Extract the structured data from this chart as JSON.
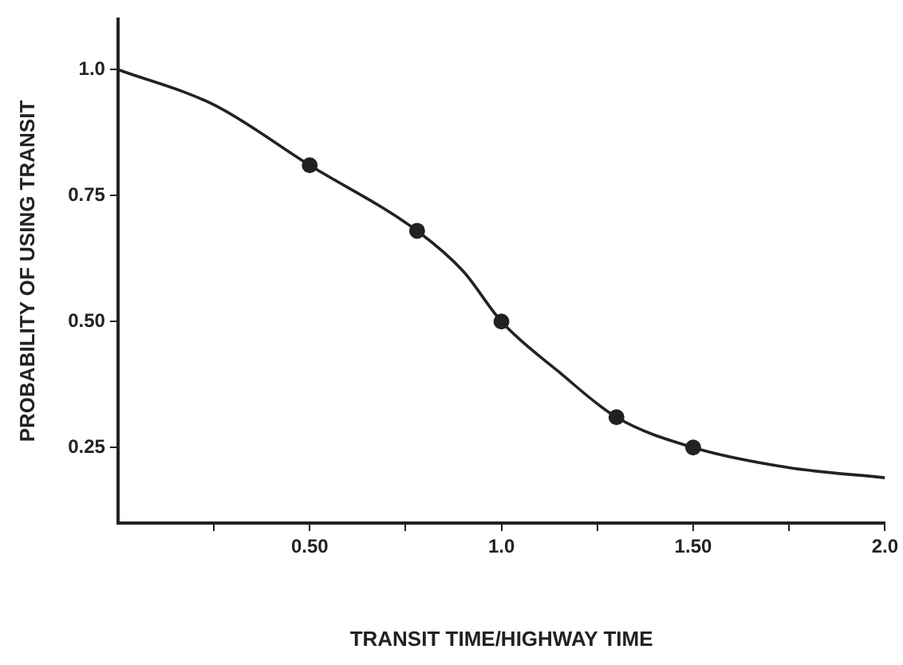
{
  "chart_data": {
    "type": "line",
    "xlabel": "TRANSIT TIME/HIGHWAY TIME",
    "ylabel": "PROBABILITY OF USING TRANSIT",
    "xlim": [
      0,
      2.0
    ],
    "ylim": [
      0.1,
      1.1
    ],
    "xticks": [
      {
        "value": 0.25,
        "label": null
      },
      {
        "value": 0.5,
        "label": "0.50"
      },
      {
        "value": 0.75,
        "label": null
      },
      {
        "value": 1.0,
        "label": "1.0"
      },
      {
        "value": 1.25,
        "label": null
      },
      {
        "value": 1.5,
        "label": "1.50"
      },
      {
        "value": 1.75,
        "label": null
      },
      {
        "value": 2.0,
        "label": "2.0"
      }
    ],
    "yticks": [
      {
        "value": 0.25,
        "label": "0.25"
      },
      {
        "value": 0.5,
        "label": "0.50"
      },
      {
        "value": 0.75,
        "label": "0.75"
      },
      {
        "value": 1.0,
        "label": "1.0"
      }
    ],
    "grid": false,
    "legend": false,
    "series": [
      {
        "color": "#222222",
        "marker": "none",
        "x": [
          0,
          0.25,
          0.5,
          0.78,
          0.9,
          1.0,
          1.15,
          1.3,
          1.5,
          1.75,
          2.0
        ],
        "values": [
          1.0,
          0.93,
          0.81,
          0.68,
          0.6,
          0.5,
          0.4,
          0.31,
          0.25,
          0.21,
          0.19
        ]
      },
      {
        "type": "scatter",
        "color": "#222222",
        "marker": "circle",
        "x": [
          0.5,
          0.78,
          1.0,
          1.3,
          1.5
        ],
        "values": [
          0.81,
          0.68,
          0.5,
          0.31,
          0.25
        ]
      }
    ]
  }
}
